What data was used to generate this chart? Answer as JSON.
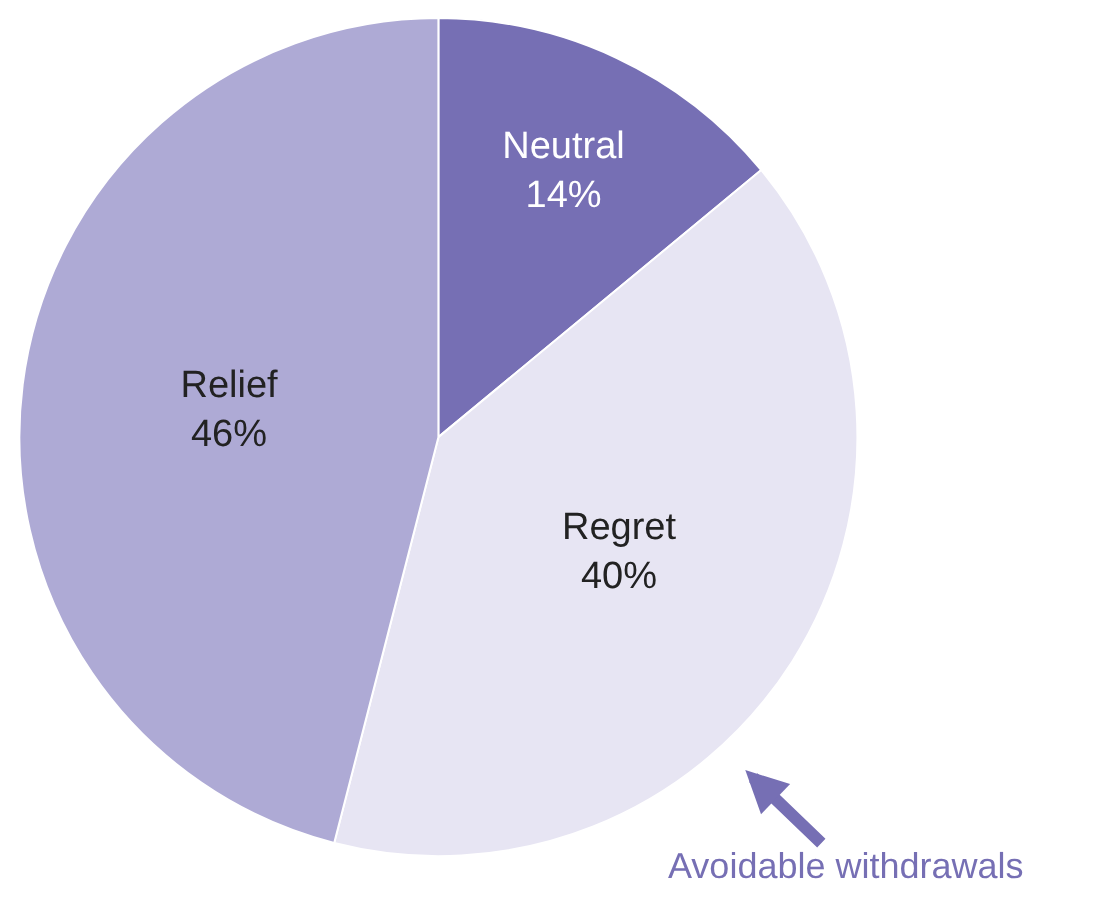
{
  "chart_data": {
    "type": "pie",
    "categories": [
      "Neutral",
      "Regret",
      "Relief"
    ],
    "values": [
      14,
      40,
      46
    ],
    "value_labels": [
      "14%",
      "40%",
      "46%"
    ],
    "colors": [
      "#766fb4",
      "#e7e5f3",
      "#aeaad5"
    ],
    "legend": false,
    "annotations": [
      "Avoidable withdrawals"
    ]
  }
}
